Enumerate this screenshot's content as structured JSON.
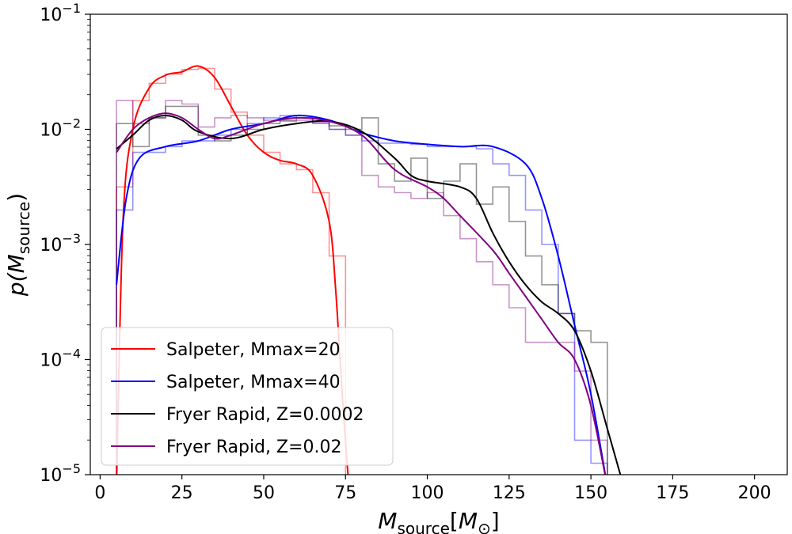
{
  "chart_data": {
    "type": "line",
    "title": "",
    "xlabel": {
      "main": "M",
      "sub": "source",
      "bracket_open": "[",
      "inner": "M",
      "inner_sub": "⊙",
      "bracket_close": "]"
    },
    "ylabel": {
      "main": "p(",
      "inner": "M",
      "sub": "source",
      "close": ")"
    },
    "xlim": [
      -3,
      210
    ],
    "ylim_log10": [
      -5,
      -1
    ],
    "y_scale": "log",
    "x_ticks": [
      0,
      25,
      50,
      75,
      100,
      125,
      150,
      175,
      200
    ],
    "x_tick_labels": [
      "0",
      "25",
      "50",
      "75",
      "100",
      "125",
      "150",
      "175",
      "200"
    ],
    "y_ticks": [
      -5,
      -4,
      -3,
      -2,
      -1
    ],
    "y_tick_labels": [
      {
        "base": "10",
        "exp": "−5"
      },
      {
        "base": "10",
        "exp": "−4"
      },
      {
        "base": "10",
        "exp": "−3"
      },
      {
        "base": "10",
        "exp": "−2"
      },
      {
        "base": "10",
        "exp": "−1"
      }
    ],
    "legend_position": "lower-left",
    "series": [
      {
        "name": "Salpeter, Mmax=20",
        "color": "#ff0000",
        "kde": [
          [
            5,
            -5.1
          ],
          [
            7,
            -2.8
          ],
          [
            10,
            -2.0
          ],
          [
            15,
            -1.64
          ],
          [
            20,
            -1.53
          ],
          [
            25,
            -1.5
          ],
          [
            30,
            -1.45
          ],
          [
            35,
            -1.55
          ],
          [
            40,
            -1.8
          ],
          [
            45,
            -2.05
          ],
          [
            50,
            -2.2
          ],
          [
            55,
            -2.27
          ],
          [
            60,
            -2.3
          ],
          [
            65,
            -2.4
          ],
          [
            70,
            -2.8
          ],
          [
            72,
            -3.4
          ],
          [
            74,
            -4.3
          ],
          [
            76,
            -5.1
          ]
        ],
        "hist_edges": [
          5,
          10,
          15,
          20,
          25,
          30,
          35,
          40,
          45,
          50,
          55,
          60,
          65,
          70,
          75
        ],
        "hist_log10": [
          -2.5,
          -1.75,
          -1.6,
          -1.52,
          -1.48,
          -1.47,
          -1.65,
          -1.85,
          -2.05,
          -2.2,
          -2.3,
          -2.35,
          -2.55,
          -3.1
        ]
      },
      {
        "name": "Salpeter, Mmax=40",
        "color": "#0000ff",
        "kde": [
          [
            5,
            -3.35
          ],
          [
            8,
            -2.6
          ],
          [
            12,
            -2.25
          ],
          [
            20,
            -2.15
          ],
          [
            30,
            -2.1
          ],
          [
            40,
            -2.0
          ],
          [
            50,
            -1.95
          ],
          [
            60,
            -1.88
          ],
          [
            70,
            -1.92
          ],
          [
            80,
            -2.03
          ],
          [
            90,
            -2.1
          ],
          [
            100,
            -2.13
          ],
          [
            110,
            -2.15
          ],
          [
            120,
            -2.15
          ],
          [
            130,
            -2.3
          ],
          [
            135,
            -2.6
          ],
          [
            140,
            -3.1
          ],
          [
            145,
            -3.7
          ],
          [
            150,
            -4.3
          ],
          [
            155,
            -5.1
          ]
        ],
        "hist_edges": [
          5,
          10,
          15,
          20,
          25,
          30,
          35,
          40,
          45,
          50,
          55,
          60,
          65,
          70,
          75,
          80,
          85,
          90,
          95,
          100,
          105,
          110,
          115,
          120,
          125,
          130,
          135,
          140,
          145,
          150,
          155
        ],
        "hist_log10": [
          -2.7,
          -2.2,
          -2.2,
          -2.15,
          -2.1,
          -2.1,
          -2.05,
          -2.0,
          -1.95,
          -1.9,
          -1.88,
          -1.9,
          -1.95,
          -2.0,
          -2.05,
          -2.1,
          -2.12,
          -2.12,
          -2.13,
          -2.15,
          -2.15,
          -2.15,
          -2.17,
          -2.3,
          -2.4,
          -2.7,
          -3.0,
          -3.6,
          -4.7,
          -4.9
        ]
      },
      {
        "name": "Fryer Rapid, Z=0.0002",
        "color": "#000000",
        "kde": [
          [
            5,
            -2.17
          ],
          [
            10,
            -2.05
          ],
          [
            15,
            -1.92
          ],
          [
            20,
            -1.88
          ],
          [
            25,
            -1.92
          ],
          [
            30,
            -2.02
          ],
          [
            40,
            -2.08
          ],
          [
            50,
            -2.0
          ],
          [
            60,
            -1.95
          ],
          [
            70,
            -1.93
          ],
          [
            80,
            -2.02
          ],
          [
            90,
            -2.25
          ],
          [
            95,
            -2.4
          ],
          [
            100,
            -2.45
          ],
          [
            110,
            -2.5
          ],
          [
            115,
            -2.6
          ],
          [
            120,
            -2.9
          ],
          [
            125,
            -3.15
          ],
          [
            130,
            -3.35
          ],
          [
            135,
            -3.5
          ],
          [
            140,
            -3.6
          ],
          [
            145,
            -3.75
          ],
          [
            150,
            -4.1
          ],
          [
            155,
            -4.6
          ],
          [
            160,
            -5.1
          ]
        ],
        "hist_edges": [
          5,
          10,
          15,
          20,
          25,
          30,
          35,
          40,
          45,
          50,
          55,
          60,
          65,
          70,
          75,
          80,
          85,
          90,
          95,
          100,
          105,
          110,
          115,
          120,
          125,
          130,
          135,
          140,
          145,
          150,
          155
        ],
        "hist_log10": [
          -1.95,
          -2.15,
          -1.9,
          -1.8,
          -1.8,
          -2.05,
          -2.1,
          -2.05,
          -2.0,
          -1.95,
          -1.92,
          -1.9,
          -1.93,
          -1.97,
          -2.0,
          -1.9,
          -2.3,
          -2.45,
          -2.25,
          -2.6,
          -2.45,
          -2.3,
          -2.65,
          -2.5,
          -2.8,
          -3.1,
          -3.35,
          -3.6,
          -3.75,
          -3.85
        ]
      },
      {
        "name": "Fryer Rapid, Z=0.02",
        "color": "#800080",
        "kde": [
          [
            5,
            -2.2
          ],
          [
            10,
            -2.0
          ],
          [
            15,
            -1.9
          ],
          [
            20,
            -1.86
          ],
          [
            25,
            -1.9
          ],
          [
            30,
            -2.0
          ],
          [
            35,
            -2.08
          ],
          [
            40,
            -2.05
          ],
          [
            50,
            -1.95
          ],
          [
            60,
            -1.9
          ],
          [
            70,
            -1.93
          ],
          [
            80,
            -2.05
          ],
          [
            90,
            -2.35
          ],
          [
            100,
            -2.5
          ],
          [
            105,
            -2.6
          ],
          [
            110,
            -2.75
          ],
          [
            120,
            -3.05
          ],
          [
            125,
            -3.25
          ],
          [
            130,
            -3.45
          ],
          [
            135,
            -3.65
          ],
          [
            140,
            -3.85
          ],
          [
            145,
            -4.0
          ],
          [
            150,
            -4.4
          ],
          [
            155,
            -5.1
          ]
        ],
        "hist_edges": [
          5,
          10,
          15,
          20,
          25,
          30,
          35,
          40,
          45,
          50,
          55,
          60,
          65,
          70,
          75,
          80,
          85,
          90,
          95,
          100,
          105,
          110,
          115,
          120,
          125,
          130,
          135,
          140,
          145,
          150,
          155
        ],
        "hist_log10": [
          -1.75,
          -1.95,
          -1.9,
          -1.75,
          -1.78,
          -1.98,
          -1.9,
          -1.88,
          -1.9,
          -1.92,
          -1.93,
          -1.92,
          -1.94,
          -2.0,
          -2.05,
          -2.4,
          -2.5,
          -2.55,
          -2.6,
          -2.55,
          -2.75,
          -2.95,
          -3.15,
          -3.35,
          -3.55,
          -3.85,
          -3.85,
          -3.85,
          -4.1,
          -4.7
        ]
      }
    ]
  }
}
